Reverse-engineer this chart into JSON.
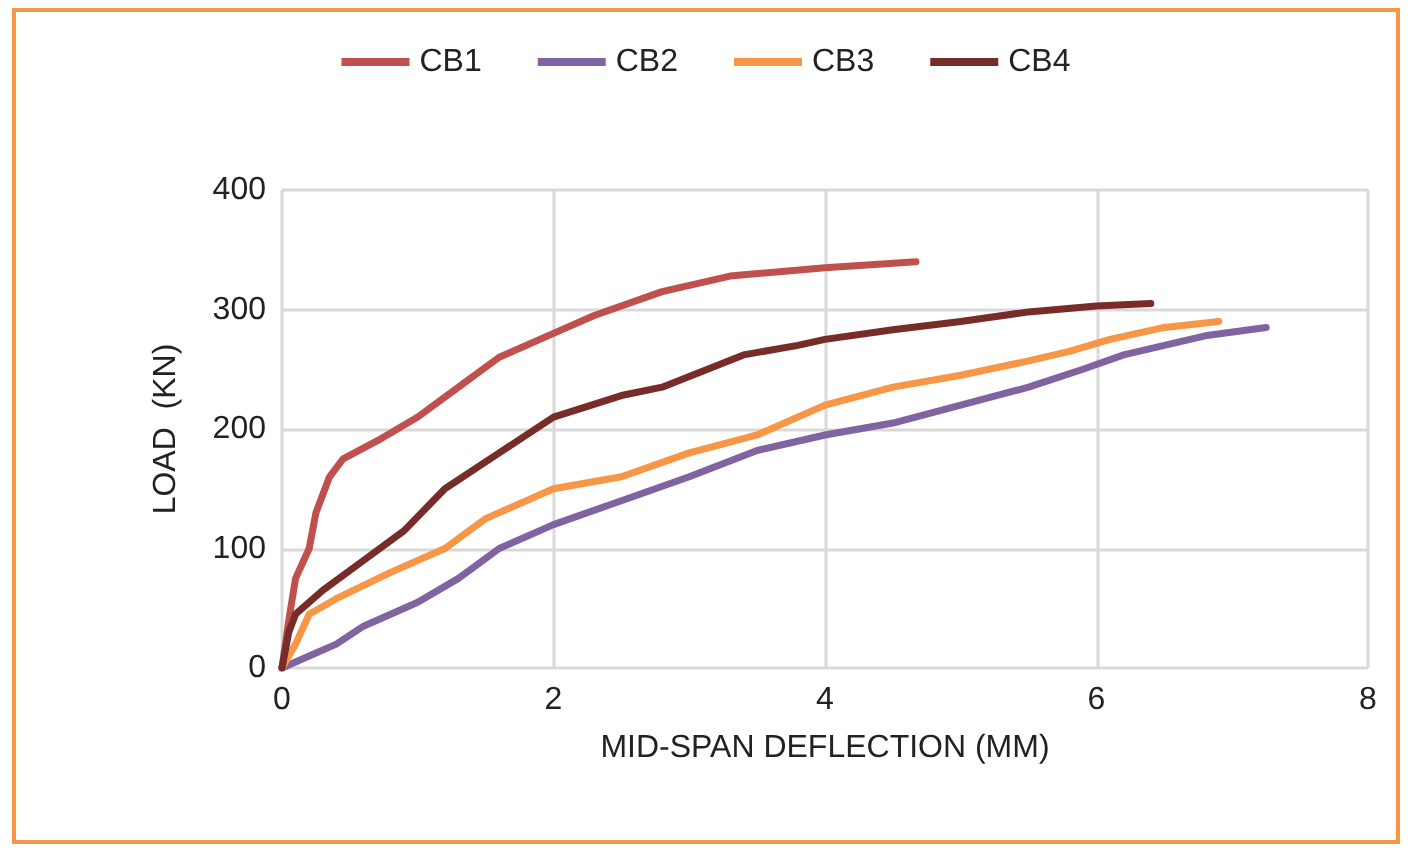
{
  "chart_data": {
    "type": "line",
    "xlabel": "MID-SPAN DEFLECTION (MM)",
    "ylabel": "LOAD  (KN)",
    "xlim": [
      0,
      8
    ],
    "xticks": [
      0,
      2,
      4,
      6,
      8
    ],
    "ylim": [
      0,
      400
    ],
    "yticks": [
      0,
      100,
      200,
      300,
      400
    ],
    "grid": true,
    "legend": "top",
    "marker": "none",
    "line_style": "solid",
    "series": [
      {
        "name": "CB1",
        "color": "#c0504d",
        "x": [
          0,
          0.05,
          0.1,
          0.2,
          0.25,
          0.3,
          0.35,
          0.45,
          0.7,
          1.0,
          1.3,
          1.6,
          2.0,
          2.3,
          2.8,
          3.3,
          4.0,
          4.67
        ],
        "values": [
          0,
          40,
          75,
          100,
          130,
          145,
          160,
          175,
          190,
          210,
          235,
          260,
          280,
          295,
          315,
          328,
          335,
          340
        ]
      },
      {
        "name": "CB2",
        "color": "#8064a2",
        "x": [
          0,
          0.2,
          0.4,
          0.6,
          1.0,
          1.3,
          1.6,
          2.0,
          2.5,
          3.0,
          3.5,
          4.0,
          4.5,
          5.0,
          5.5,
          5.9,
          6.2,
          6.8,
          7.25
        ],
        "values": [
          0,
          10,
          20,
          35,
          55,
          75,
          100,
          120,
          140,
          160,
          182,
          195,
          205,
          220,
          235,
          250,
          262,
          278,
          285
        ]
      },
      {
        "name": "CB3",
        "color": "#f79646",
        "x": [
          0,
          0.1,
          0.2,
          0.4,
          0.8,
          1.2,
          1.5,
          2.0,
          2.5,
          3.0,
          3.5,
          4.0,
          4.5,
          5.0,
          5.5,
          5.8,
          6.1,
          6.5,
          6.9
        ],
        "values": [
          0,
          20,
          45,
          58,
          80,
          100,
          125,
          150,
          160,
          180,
          195,
          220,
          235,
          245,
          257,
          265,
          275,
          285,
          290
        ]
      },
      {
        "name": "CB4",
        "color": "#772c2a",
        "x": [
          0,
          0.05,
          0.1,
          0.3,
          0.6,
          0.9,
          1.2,
          1.6,
          2.0,
          2.5,
          2.8,
          3.4,
          3.8,
          4.0,
          4.5,
          5.0,
          5.5,
          6.0,
          6.4
        ],
        "values": [
          0,
          30,
          45,
          65,
          90,
          115,
          150,
          180,
          210,
          228,
          235,
          262,
          270,
          275,
          283,
          290,
          298,
          303,
          305
        ]
      }
    ]
  }
}
